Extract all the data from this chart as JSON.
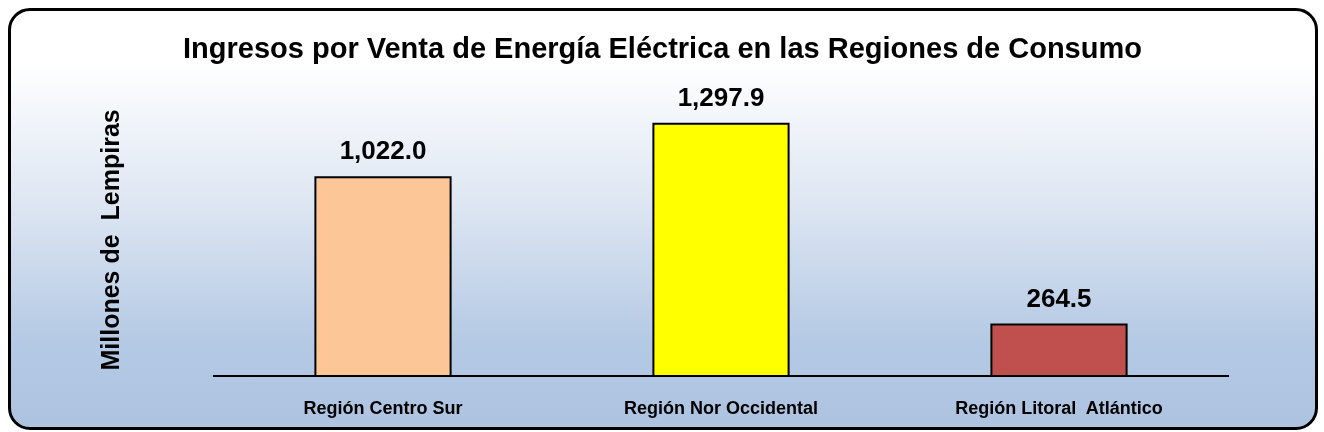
{
  "chart_data": {
    "type": "bar",
    "title": "Ingresos por Venta de Energía Eléctrica en las Regiones de Consumo",
    "ylabel": "Millones de  Lempiras",
    "categories": [
      "Región Centro Sur",
      "Región Nor Occidental",
      "Región Litoral  Atlántico"
    ],
    "values": [
      1022.0,
      1297.9,
      264.5
    ],
    "colors": [
      "#fcc697",
      "#ffff00",
      "#c0504d"
    ],
    "value_labels": [
      "1,022.0",
      "1,297.9",
      "264.5"
    ],
    "tick_labels": "x"
  }
}
